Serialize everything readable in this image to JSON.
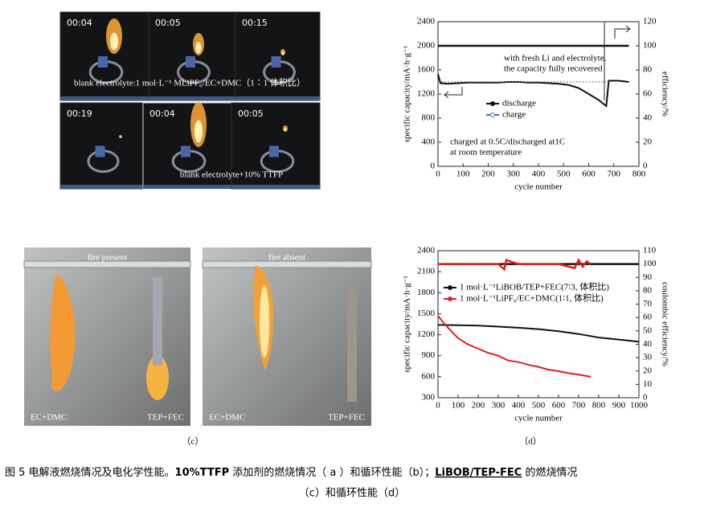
{
  "photos": {
    "a": {
      "timestamps": [
        "00:04",
        "00:05",
        "00:15",
        "00:19",
        "00:04",
        "00:05"
      ],
      "captions": [
        "blank electrolyte:1 mol·L⁻¹ MLiPF₆/EC+DMC（1∶1 体积比）",
        "blank electrolyte+10% TTFP"
      ]
    },
    "c": {
      "titles": [
        "fire present",
        "fire absent"
      ],
      "labels": [
        "EC+DMC",
        "TEP+FEC",
        "EC+DMC",
        "TEP+FEC"
      ],
      "panel_label": "（c）"
    }
  },
  "chart_data": [
    {
      "type": "line",
      "xlabel": "cycle number",
      "ylabel": "specific capacity/mA·h·g⁻¹",
      "y2label": "efficiency/%",
      "xlim": [
        0,
        800
      ],
      "xticks": [
        0,
        100,
        200,
        300,
        400,
        500,
        600,
        700,
        800
      ],
      "ylim": [
        0,
        2400
      ],
      "yticks": [
        0,
        400,
        800,
        1200,
        1600,
        2000,
        2400
      ],
      "y2lim": [
        0,
        120
      ],
      "y2ticks": [
        0,
        20,
        40,
        60,
        80,
        100,
        120
      ],
      "series": [
        {
          "name": "discharge",
          "color": "#111111",
          "x": [
            0,
            10,
            40,
            80,
            120,
            160,
            200,
            240,
            280,
            320,
            360,
            400,
            440,
            480,
            520,
            560,
            600,
            640,
            670,
            680,
            720,
            760
          ],
          "values": [
            1530,
            1380,
            1370,
            1380,
            1390,
            1390,
            1390,
            1390,
            1400,
            1400,
            1390,
            1390,
            1380,
            1370,
            1350,
            1300,
            1200,
            1100,
            1000,
            1420,
            1420,
            1400
          ]
        },
        {
          "name": "charge",
          "color": "#4a6fb5",
          "x": [
            0,
            100,
            200,
            300,
            400,
            500,
            600,
            670
          ],
          "values": [
            1400,
            1400,
            1400,
            1400,
            1400,
            1400,
            1400,
            1400
          ]
        },
        {
          "color": "#111111",
          "axis": "y2",
          "x": [
            0,
            100,
            200,
            300,
            400,
            500,
            600,
            670,
            680,
            760
          ],
          "values": [
            100,
            100,
            100,
            100,
            100,
            100,
            100,
            100,
            100,
            100
          ]
        }
      ],
      "annotations": [
        "with fresh Li and electrolyte.",
        "the capacity fully recovered",
        "charged at 0.5C/discharged at1C",
        "at room temperature"
      ]
    },
    {
      "type": "line",
      "xlabel": "cycle number",
      "ylabel": "specific capacity/mA·h·g⁻¹",
      "y2label": "coulombic efficiency/%",
      "xlim": [
        0,
        1000
      ],
      "xticks": [
        0,
        100,
        200,
        300,
        400,
        500,
        600,
        700,
        800,
        900,
        1000
      ],
      "ylim": [
        300,
        2400
      ],
      "yticks": [
        300,
        600,
        900,
        1200,
        1500,
        1800,
        2100,
        2400
      ],
      "y2lim": [
        0,
        110
      ],
      "y2ticks": [
        0,
        10,
        20,
        30,
        40,
        50,
        60,
        70,
        80,
        90,
        100,
        110
      ],
      "series": [
        {
          "name": "1 mol·L⁻¹LiBOB/TEP+FEC(7∶3, 体积比)",
          "color": "#111111",
          "x": [
            0,
            100,
            200,
            300,
            400,
            500,
            600,
            700,
            800,
            900,
            1000
          ],
          "values": [
            1340,
            1335,
            1330,
            1315,
            1300,
            1280,
            1250,
            1210,
            1160,
            1130,
            1100
          ]
        },
        {
          "name": "1 mol·L⁻¹LiPF₆/EC+DMC(1∶1, 体积比)",
          "color": "#e02020",
          "x": [
            0,
            25,
            50,
            100,
            150,
            200,
            250,
            300,
            350,
            400,
            450,
            500,
            550,
            600,
            650,
            700,
            760
          ],
          "values": [
            1470,
            1380,
            1300,
            1150,
            1060,
            1000,
            940,
            900,
            830,
            810,
            770,
            740,
            700,
            680,
            650,
            630,
            600
          ]
        },
        {
          "color": "#111111",
          "axis": "y2",
          "x": [
            0,
            200,
            400,
            600,
            800,
            1000
          ],
          "values": [
            100,
            100,
            100,
            100,
            100,
            100
          ]
        },
        {
          "color": "#e02020",
          "axis": "y2",
          "x": [
            0,
            100,
            200,
            300,
            330,
            340,
            400,
            500,
            600,
            680,
            700,
            720,
            740,
            760
          ],
          "values": [
            100,
            100,
            100,
            100,
            96,
            103,
            100,
            100,
            100,
            97,
            103,
            98,
            102,
            100
          ]
        }
      ],
      "panel_label": "（d）"
    }
  ],
  "caption": {
    "line1": [
      "图 5  电解液燃烧情况及电化学性能。",
      "10%TTFP",
      " 添加剂的燃烧情况（ a ）和循环性能（b）；",
      "LiBOB/TEP-FEC",
      " 的燃烧情况"
    ],
    "line2": "（c）和循环性能（d）"
  }
}
